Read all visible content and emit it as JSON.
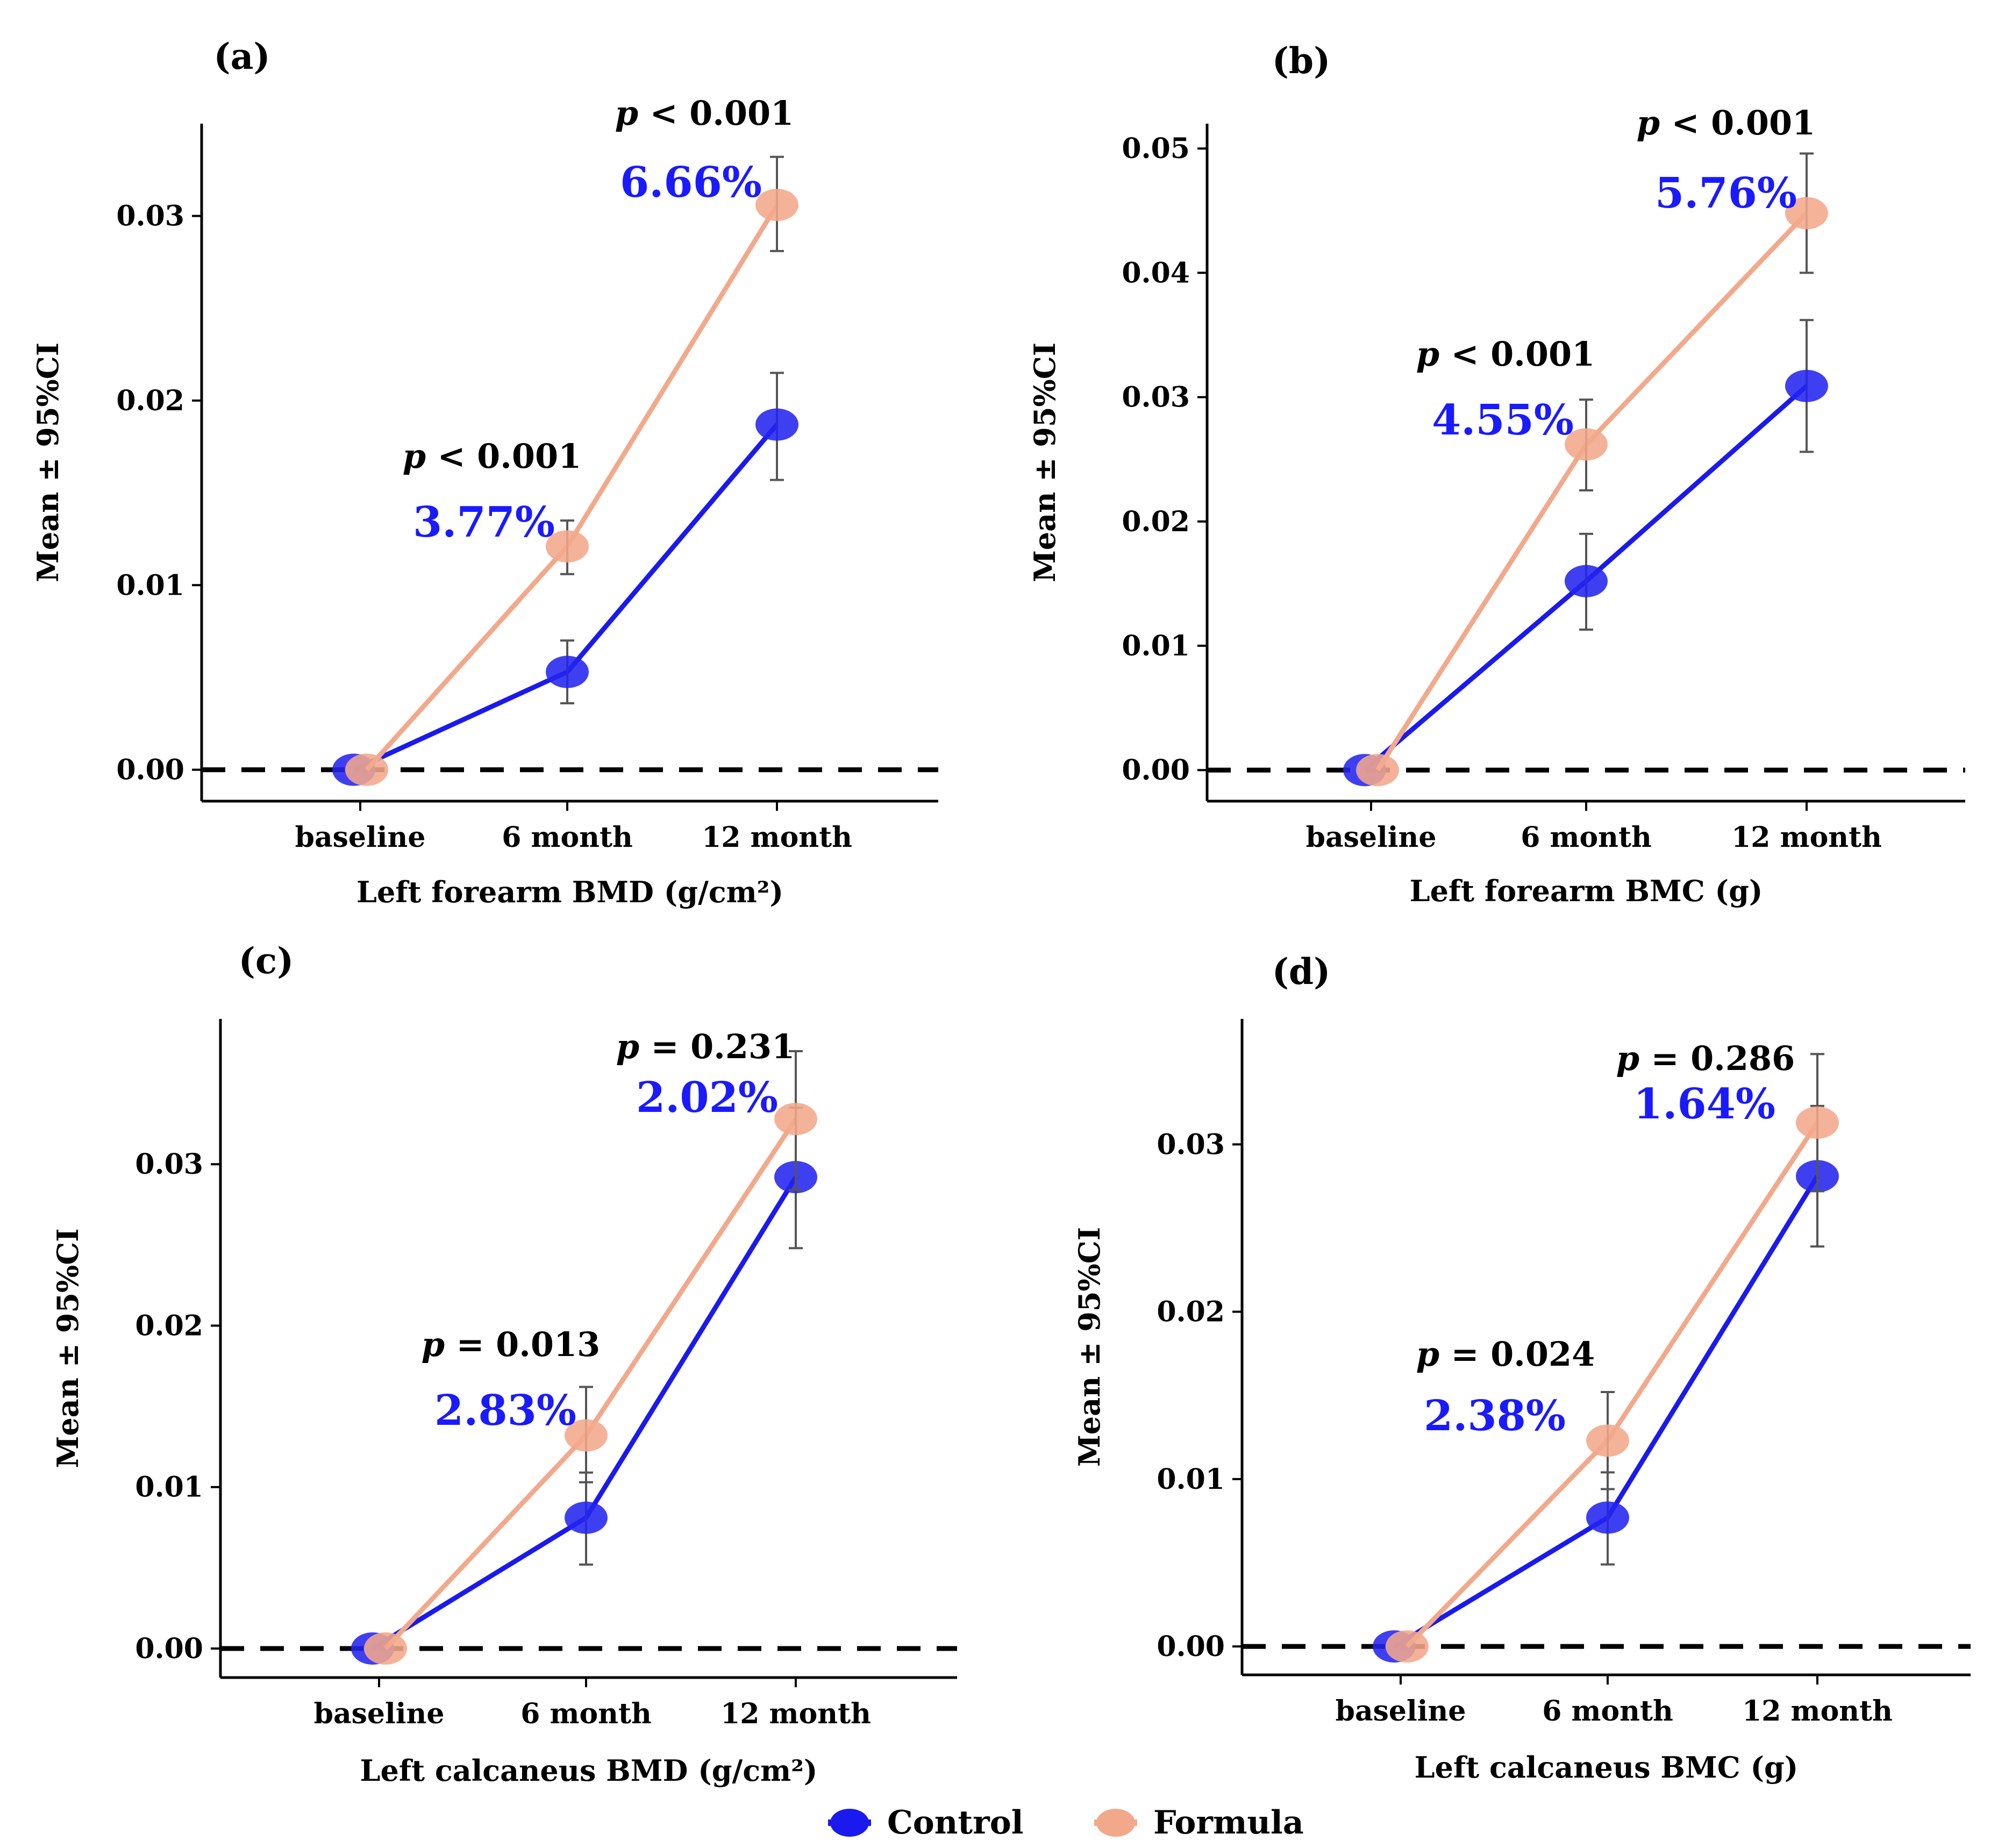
{
  "legend": [
    {
      "name": "Control",
      "color": "#1a1aee"
    },
    {
      "name": "Formula",
      "color": "#f2a98b"
    }
  ],
  "chart_data": [
    {
      "type": "line",
      "panel": "(a)",
      "xlabel": "Left forearm BMD (g/cm²)",
      "ylabel": "Mean ± 95%CI",
      "categories": [
        "baseline",
        "6 month",
        "12 month"
      ],
      "ylim": [
        -0.0017,
        0.035
      ],
      "yticks": [
        "0.00",
        "0.01",
        "0.02",
        "0.03"
      ],
      "series": [
        {
          "name": "Control",
          "values": [
            0.0,
            0.0053,
            0.0187
          ],
          "ci_low": [
            0.0,
            0.0036,
            0.0157
          ],
          "ci_high": [
            0.0,
            0.007,
            0.0215
          ]
        },
        {
          "name": "Formula",
          "values": [
            0.0,
            0.0121,
            0.0306
          ],
          "ci_low": [
            0.0,
            0.0106,
            0.0281
          ],
          "ci_high": [
            0.0,
            0.0135,
            0.0332
          ]
        }
      ],
      "annotations": [
        {
          "category": "6 month",
          "p": "< 0.001",
          "pct": "3.77%"
        },
        {
          "category": "12 month",
          "p": "< 0.001",
          "pct": "6.66%"
        }
      ]
    },
    {
      "type": "line",
      "panel": "(b)",
      "xlabel": "Left forearm BMC (g)",
      "ylabel": "Mean ± 95%CI",
      "categories": [
        "baseline",
        "6 month",
        "12 month"
      ],
      "ylim": [
        -0.0025,
        0.052
      ],
      "yticks": [
        "0.00",
        "0.01",
        "0.02",
        "0.03",
        "0.04",
        "0.05"
      ],
      "series": [
        {
          "name": "Control",
          "values": [
            0.0,
            0.0152,
            0.0309
          ],
          "ci_low": [
            0.0,
            0.0113,
            0.0256
          ],
          "ci_high": [
            0.0,
            0.019,
            0.0362
          ]
        },
        {
          "name": "Formula",
          "values": [
            0.0,
            0.0262,
            0.0448
          ],
          "ci_low": [
            0.0,
            0.0225,
            0.04
          ],
          "ci_high": [
            0.0,
            0.0298,
            0.0496
          ]
        }
      ],
      "annotations": [
        {
          "category": "6 month",
          "p": "< 0.001",
          "pct": "4.55%"
        },
        {
          "category": "12 month",
          "p": "< 0.001",
          "pct": "5.76%"
        }
      ]
    },
    {
      "type": "line",
      "panel": "(c)",
      "xlabel": "Left calcaneus BMD (g/cm²)",
      "ylabel": "Mean ± 95%CI",
      "categories": [
        "baseline",
        "6 month",
        "12 month"
      ],
      "ylim": [
        -0.0018,
        0.039
      ],
      "yticks": [
        "0.00",
        "0.01",
        "0.02",
        "0.03"
      ],
      "series": [
        {
          "name": "Control",
          "values": [
            0.0,
            0.0081,
            0.0292
          ],
          "ci_low": [
            0.0,
            0.0052,
            0.0248
          ],
          "ci_high": [
            0.0,
            0.0109,
            0.0335
          ]
        },
        {
          "name": "Formula",
          "values": [
            0.0,
            0.0132,
            0.0328
          ],
          "ci_low": [
            0.0,
            0.0103,
            0.0284
          ],
          "ci_high": [
            0.0,
            0.0162,
            0.037
          ]
        }
      ],
      "annotations": [
        {
          "category": "6 month",
          "p": "= 0.013",
          "pct": "2.83%"
        },
        {
          "category": "12 month",
          "p": "= 0.231",
          "pct": "2.02%"
        }
      ]
    },
    {
      "type": "line",
      "panel": "(d)",
      "xlabel": "Left calcaneus BMC (g)",
      "ylabel": "Mean ± 95%CI",
      "categories": [
        "baseline",
        "6 month",
        "12 month"
      ],
      "ylim": [
        -0.0017,
        0.0375
      ],
      "yticks": [
        "0.00",
        "0.01",
        "0.02",
        "0.03"
      ],
      "series": [
        {
          "name": "Control",
          "values": [
            0.0,
            0.0077,
            0.0281
          ],
          "ci_low": [
            0.0,
            0.0049,
            0.0239
          ],
          "ci_high": [
            0.0,
            0.0104,
            0.0323
          ]
        },
        {
          "name": "Formula",
          "values": [
            0.0,
            0.0123,
            0.0313
          ],
          "ci_low": [
            0.0,
            0.0094,
            0.0272
          ],
          "ci_high": [
            0.0,
            0.0152,
            0.0354
          ]
        }
      ],
      "annotations": [
        {
          "category": "6 month",
          "p": "= 0.024",
          "pct": "2.38%"
        },
        {
          "category": "12 month",
          "p": "= 0.286",
          "pct": "1.64%"
        }
      ]
    }
  ]
}
